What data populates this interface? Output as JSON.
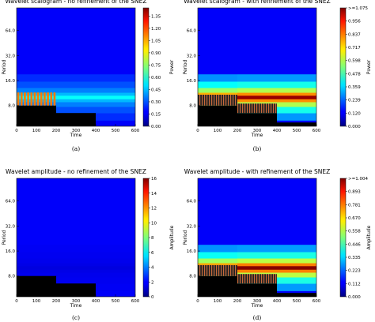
{
  "chart_data": [
    {
      "type": "heatmap",
      "title": "Wavelet scalogram - no refinement of the SNEZ",
      "caption": "(a)",
      "xlabel": "Time",
      "ylabel": "Period",
      "colorbar_label": "Power",
      "x_ticks": [
        "0",
        "100",
        "200",
        "300",
        "400",
        "500",
        "600"
      ],
      "y_ticks": [
        "8.0",
        "16.0",
        "32.0",
        "64.0"
      ],
      "colorbar_ticks": [
        "0.00",
        "0.15",
        "0.30",
        "0.45",
        "0.60",
        "0.75",
        "0.90",
        "1.05",
        "1.20",
        "1.35"
      ],
      "colorbar_range": [
        0,
        1.45
      ],
      "xlim": [
        0,
        600
      ],
      "ridge_period": 10,
      "segments": [
        {
          "x": [
            0,
            200
          ],
          "ridge_value": 0.55,
          "masked_below_period": 8.0
        },
        {
          "x": [
            200,
            400
          ],
          "ridge_value": 0.55,
          "masked_below_period": 6.5
        },
        {
          "x": [
            400,
            600
          ],
          "ridge_value": 0.55,
          "masked_below_period": 0
        }
      ]
    },
    {
      "type": "heatmap",
      "title": "Wavelet scalogram - with refinement of the SNEZ",
      "caption": "(b)",
      "xlabel": "Time",
      "ylabel": "Period",
      "colorbar_label": "Power",
      "x_ticks": [
        "0",
        "100",
        "200",
        "300",
        "400",
        "500",
        "600"
      ],
      "y_ticks": [
        "8.0",
        "16.0",
        "32.0",
        "64.0"
      ],
      "colorbar_ticks": [
        ">=1.075",
        "0.956",
        "0.837",
        "0.717",
        "0.598",
        "0.478",
        "0.359",
        "0.239",
        "0.120",
        "0.000"
      ],
      "colorbar_range": [
        0,
        1.075
      ],
      "xlim": [
        0,
        600
      ],
      "ridge_period": 10,
      "segments": [
        {
          "x": [
            0,
            200
          ],
          "ridge_value": 1.0,
          "masked_below_period": 8.0
        },
        {
          "x": [
            200,
            400
          ],
          "ridge_value": 1.05,
          "masked_below_period": 6.5
        },
        {
          "x": [
            400,
            600
          ],
          "ridge_value": 1.05,
          "masked_below_period": 5.0
        }
      ]
    },
    {
      "type": "heatmap",
      "title": "Wavelet amplitude - no refinement of the SNEZ",
      "caption": "(c)",
      "xlabel": "Time",
      "ylabel": "Period",
      "colorbar_label": "Amplitude",
      "x_ticks": [
        "0",
        "100",
        "200",
        "300",
        "400",
        "500",
        "600"
      ],
      "y_ticks": [
        "8.0",
        "16.0",
        "32.0",
        "64.0"
      ],
      "colorbar_ticks": [
        "0",
        "2",
        "4",
        "6",
        "8",
        "10",
        "12",
        "14",
        "16"
      ],
      "colorbar_range": [
        0,
        16
      ],
      "xlim": [
        0,
        600
      ],
      "ridge_period": 10,
      "segments": [
        {
          "x": [
            0,
            200
          ],
          "ridge_value": 1.5,
          "masked_below_period": 8.0
        },
        {
          "x": [
            200,
            400
          ],
          "ridge_value": 1.5,
          "masked_below_period": 6.5
        },
        {
          "x": [
            400,
            600
          ],
          "ridge_value": 1.5,
          "masked_below_period": 0
        }
      ]
    },
    {
      "type": "heatmap",
      "title": "Wavelet amplitude - with refinement of the SNEZ",
      "caption": "(d)",
      "xlabel": "Time",
      "ylabel": "Period",
      "colorbar_label": "Amplitude",
      "x_ticks": [
        "0",
        "100",
        "200",
        "300",
        "400",
        "500",
        "600"
      ],
      "y_ticks": [
        "8.0",
        "16.0",
        "32.0",
        "64.0"
      ],
      "colorbar_ticks": [
        ">=1.004",
        "0.893",
        "0.781",
        "0.670",
        "0.558",
        "0.446",
        "0.335",
        "0.223",
        "0.112",
        "0.000"
      ],
      "colorbar_range": [
        0,
        1.004
      ],
      "xlim": [
        0,
        600
      ],
      "ridge_period": 10,
      "segments": [
        {
          "x": [
            0,
            200
          ],
          "ridge_value": 0.95,
          "masked_below_period": 8.0
        },
        {
          "x": [
            200,
            400
          ],
          "ridge_value": 1.0,
          "masked_below_period": 6.5
        },
        {
          "x": [
            400,
            600
          ],
          "ridge_value": 1.0,
          "masked_below_period": 5.0
        }
      ]
    }
  ]
}
